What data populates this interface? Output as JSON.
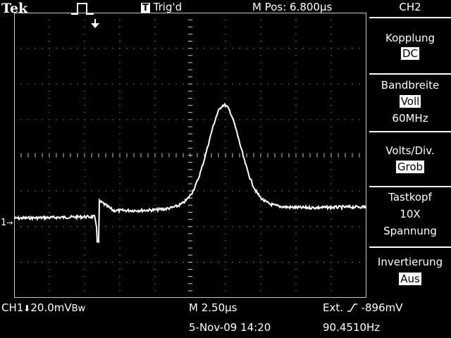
{
  "header": {
    "brand": "Tek",
    "trigger_badge": "T",
    "trigger_status": "Trig'd",
    "horizontal_position": "M Pos: 6.800µs",
    "channel_title": "CH2"
  },
  "menu": {
    "coupling_title": "Kopplung",
    "coupling_value": "DC",
    "bandwidth_title": "Bandbreite",
    "bandwidth_value": "Voll",
    "bandwidth_freq": "60MHz",
    "volts_title": "Volts/Div.",
    "volts_value": "Grob",
    "probe_title": "Tastkopf",
    "probe_attenuation": "10X",
    "probe_type": "Spannung",
    "invert_title": "Invertierung",
    "invert_value": "Aus"
  },
  "screen": {
    "channel_marker": "1",
    "colors": {
      "trace": "#ffffff",
      "grid": "#c8c8c8",
      "background": "#000000"
    }
  },
  "footer": {
    "ch1_scale": "CH1",
    "ch1_value": "20.0mV",
    "ch1_bw": "Bw",
    "timebase": "M 2.50µs",
    "trigger_source": "Ext.",
    "trigger_level": "-896mV",
    "date_time": "5-Nov-09 14:20",
    "frequency": "90.4510Hz"
  }
}
